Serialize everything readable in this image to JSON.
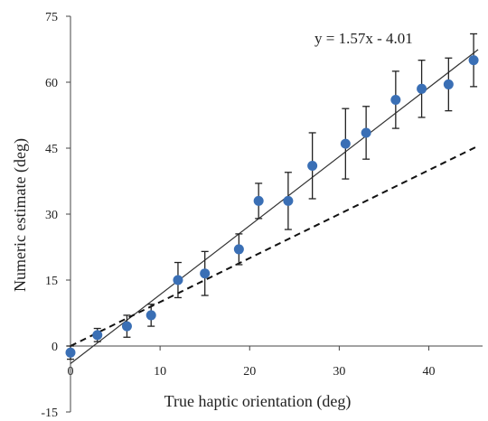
{
  "chart_data": {
    "type": "scatter",
    "xlabel": "True haptic orientation (deg)",
    "ylabel": "Numeric estimate (deg)",
    "xlim": [
      0,
      46
    ],
    "ylim": [
      -15,
      75
    ],
    "x_ticks": [
      "0",
      "10",
      "20",
      "30",
      "40"
    ],
    "y_ticks": [
      "-15",
      "0",
      "15",
      "30",
      "45",
      "60",
      "75"
    ],
    "grid": false,
    "legend": "none",
    "points": [
      {
        "x": 0,
        "y": -1.5,
        "err": 1.5
      },
      {
        "x": 3,
        "y": 2.5,
        "err": 1.5
      },
      {
        "x": 6.3,
        "y": 4.5,
        "err": 2.5
      },
      {
        "x": 9,
        "y": 7,
        "err": 2.5
      },
      {
        "x": 12,
        "y": 15,
        "err": 4
      },
      {
        "x": 15,
        "y": 16.5,
        "err": 5
      },
      {
        "x": 18.8,
        "y": 22,
        "err": 3.5
      },
      {
        "x": 21,
        "y": 33,
        "err": 4
      },
      {
        "x": 24.3,
        "y": 33,
        "err": 6.5
      },
      {
        "x": 27,
        "y": 41,
        "err": 7.5
      },
      {
        "x": 30.7,
        "y": 46,
        "err": 8
      },
      {
        "x": 33,
        "y": 48.5,
        "err": 6
      },
      {
        "x": 36.3,
        "y": 56,
        "err": 6.5
      },
      {
        "x": 39.2,
        "y": 58.5,
        "err": 6.5
      },
      {
        "x": 42.2,
        "y": 59.5,
        "err": 6
      },
      {
        "x": 45,
        "y": 65,
        "err": 6
      }
    ],
    "fit_line": {
      "slope": 1.57,
      "intercept": -4.01,
      "label": "y = 1.57x - 4.01"
    },
    "identity_line": {
      "slope": 1,
      "intercept": 0,
      "style": "dashed"
    },
    "colors": {
      "points": "#3a6fb5",
      "error_bars": "#222222",
      "fit": "#333333",
      "identity": "#111111",
      "axes": "#444444"
    }
  }
}
